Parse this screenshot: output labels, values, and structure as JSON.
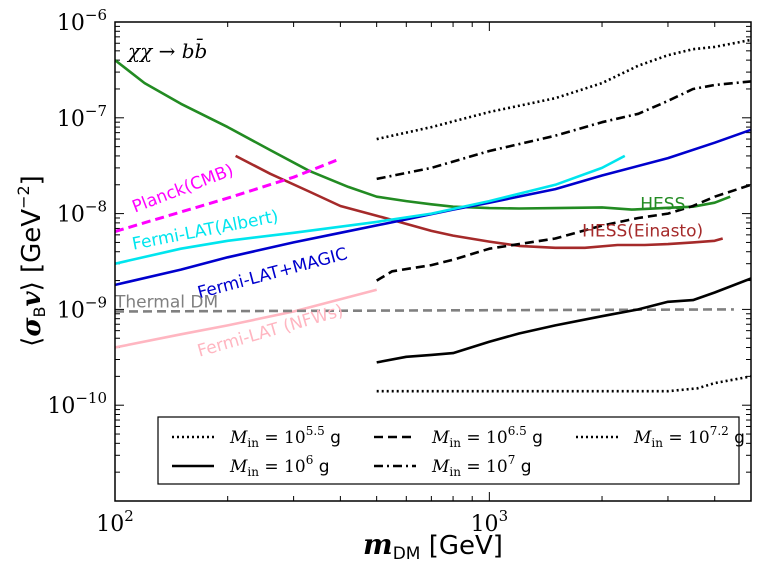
{
  "chart_data": {
    "type": "line",
    "xscale": "log",
    "yscale": "log",
    "xlim": [
      100,
      5000
    ],
    "ylim": [
      1e-11,
      1e-06
    ],
    "xlabel": "m_DM [GeV]",
    "ylabel": "⟨σ_B v⟩ [GeV^-2]",
    "process_label": "χχ → bb̄",
    "x_ticks": [
      {
        "value": 100,
        "base": "10",
        "exp": "2"
      },
      {
        "value": 1000,
        "base": "10",
        "exp": "3"
      }
    ],
    "y_ticks": [
      {
        "value": 1e-10,
        "base": "10",
        "exp": "−10"
      },
      {
        "value": 1e-09,
        "base": "10",
        "exp": "−9"
      },
      {
        "value": 1e-08,
        "base": "10",
        "exp": "−8"
      },
      {
        "value": 1e-07,
        "base": "10",
        "exp": "−7"
      },
      {
        "value": 1e-06,
        "base": "10",
        "exp": "−6"
      }
    ],
    "series": [
      {
        "name": "HESS",
        "color": "#228b22",
        "dash": "solid",
        "width": 2.6,
        "x": [
          100,
          120,
          150,
          200,
          260,
          330,
          420,
          500,
          600,
          700,
          800,
          1000,
          1200,
          1500,
          2000,
          2400,
          3000,
          3500,
          4000,
          4400
        ],
        "y": [
          4e-07,
          2.3e-07,
          1.4e-07,
          8e-08,
          4.6e-08,
          2.8e-08,
          1.9e-08,
          1.5e-08,
          1.35e-08,
          1.25e-08,
          1.18e-08,
          1.14e-08,
          1.13e-08,
          1.14e-08,
          1.16e-08,
          1.1e-08,
          1.15e-08,
          1.18e-08,
          1.3e-08,
          1.5e-08
        ]
      },
      {
        "name": "HESS(Einasto)",
        "color": "#a52a2a",
        "dash": "solid",
        "width": 2.6,
        "x": [
          210,
          260,
          330,
          400,
          500,
          600,
          700,
          800,
          1000,
          1200,
          1500,
          1800,
          2200,
          2600,
          3000,
          3500,
          4000,
          4200
        ],
        "y": [
          4e-08,
          2.6e-08,
          1.7e-08,
          1.2e-08,
          9.5e-09,
          7.8e-09,
          6.6e-09,
          5.9e-09,
          5.1e-09,
          4.6e-09,
          4.4e-09,
          4.4e-09,
          4.7e-09,
          4.7e-09,
          4.8e-09,
          5e-09,
          5.2e-09,
          5.5e-09
        ]
      },
      {
        "name": "Fermi-LAT+MAGIC",
        "color": "#0000cd",
        "dash": "solid",
        "width": 2.6,
        "x": [
          100,
          150,
          200,
          300,
          400,
          600,
          800,
          1000,
          1500,
          2000,
          3000,
          4000,
          5000
        ],
        "y": [
          1.8e-09,
          2.6e-09,
          3.5e-09,
          5e-09,
          6.3e-09,
          8.7e-09,
          1.1e-08,
          1.3e-08,
          1.8e-08,
          2.5e-08,
          3.8e-08,
          5.5e-08,
          7.5e-08
        ]
      },
      {
        "name": "Fermi-LAT(Albert)",
        "color": "#00e5ee",
        "dash": "solid",
        "width": 2.6,
        "x": [
          100,
          150,
          200,
          300,
          500,
          700,
          1000,
          1500,
          2000,
          2300
        ],
        "y": [
          3e-09,
          4.3e-09,
          5.2e-09,
          6.3e-09,
          8.2e-09,
          1e-08,
          1.35e-08,
          2e-08,
          3e-08,
          4e-08
        ]
      },
      {
        "name": "Planck(CMB)",
        "color": "#ff00ff",
        "dash": "dashed",
        "width": 3,
        "x": [
          100,
          200,
          300,
          390
        ],
        "y": [
          6.5e-09,
          1.45e-08,
          2.4e-08,
          3.6e-08
        ]
      },
      {
        "name": "Fermi-LAT (NFWs)",
        "color": "#ffb6c1",
        "dash": "solid",
        "width": 2.6,
        "x": [
          100,
          150,
          200,
          300,
          500
        ],
        "y": [
          4e-10,
          5.5e-10,
          6.8e-10,
          9.5e-10,
          1.6e-09
        ]
      },
      {
        "name": "Thermal DM",
        "color": "#808080",
        "dash": "dashed",
        "width": 2.6,
        "x": [
          100,
          4500
        ],
        "y": [
          9.5e-10,
          1e-09
        ]
      },
      {
        "name": "M_in = 10^6 g",
        "color": "#000000",
        "dash": "solid",
        "width": 2.6,
        "x": [
          500,
          600,
          700,
          800,
          1000,
          1200,
          1500,
          2000,
          2500,
          3000,
          3500,
          4000,
          5000
        ],
        "y": [
          2.8e-10,
          3.2e-10,
          3.35e-10,
          3.5e-10,
          4.6e-10,
          5.6e-10,
          6.8e-10,
          8.5e-10,
          1e-09,
          1.2e-09,
          1.25e-09,
          1.5e-09,
          2.1e-09
        ]
      },
      {
        "name": "M_in = 10^6.5 g",
        "color": "#000000",
        "dash": "dashed",
        "width": 2.6,
        "x": [
          500,
          550,
          700,
          800,
          1000,
          1500,
          2000,
          2500,
          3000,
          3500,
          4000,
          5000
        ],
        "y": [
          2e-09,
          2.5e-09,
          2.9e-09,
          3.3e-09,
          4.3e-09,
          5.5e-09,
          7.5e-09,
          9e-09,
          1e-08,
          1.2e-08,
          1.5e-08,
          2e-08
        ]
      },
      {
        "name": "M_in = 10^7 g",
        "color": "#000000",
        "dash": "dashdot",
        "width": 2.6,
        "x": [
          500,
          700,
          1000,
          1500,
          2000,
          2500,
          3000,
          3500,
          4000,
          5000
        ],
        "y": [
          2.3e-08,
          3e-08,
          4.5e-08,
          6.5e-08,
          9e-08,
          1.1e-07,
          1.5e-07,
          2e-07,
          2.2e-07,
          2.4e-07
        ]
      },
      {
        "name": "M_in = 10^5.5 g",
        "color": "#000000",
        "dash": "dotted",
        "width": 2.6,
        "x": [
          500,
          1000,
          2000,
          3000,
          3600,
          4000,
          5000
        ],
        "y": [
          1.4e-10,
          1.4e-10,
          1.4e-10,
          1.4e-10,
          1.5e-10,
          1.7e-10,
          2e-10
        ]
      },
      {
        "name": "M_in = 10^7.2 g",
        "color": "#000000",
        "dash": "dotted",
        "width": 2.6,
        "x": [
          500,
          700,
          1000,
          1500,
          2000,
          2500,
          3000,
          3500,
          4000,
          5000
        ],
        "y": [
          6e-08,
          8e-08,
          1.15e-07,
          1.6e-07,
          2.3e-07,
          3.5e-07,
          4.5e-07,
          5.2e-07,
          5.5e-07,
          6.5e-07
        ]
      }
    ],
    "curve_labels": [
      {
        "series": "Planck(CMB)",
        "text": "Planck(CMB)",
        "x": 113,
        "y": 1.02e-08,
        "rotate": -21,
        "color": "#ff00ff"
      },
      {
        "series": "Fermi-LAT(Albert)",
        "text": "Fermi-LAT(Albert)",
        "x": 112,
        "y": 4.2e-09,
        "rotate": -11,
        "color": "#00e5ee"
      },
      {
        "series": "Fermi-LAT+MAGIC",
        "text": "Fermi-LAT+MAGIC",
        "x": 168,
        "y": 1.3e-09,
        "rotate": -15,
        "color": "#0000cd"
      },
      {
        "series": "Thermal DM",
        "text": "Thermal DM",
        "x": 100,
        "y": 1.05e-09,
        "rotate": 0,
        "color": "#808080"
      },
      {
        "series": "Fermi-LAT (NFWs)",
        "text": "Fermi-LAT (NFWs)",
        "x": 168,
        "y": 3.2e-10,
        "rotate": -16,
        "color": "#ffb6c1"
      },
      {
        "series": "HESS",
        "text": "HESS",
        "x": 2530,
        "y": 1.1e-08,
        "rotate": 0,
        "color": "#228b22"
      },
      {
        "series": "HESS(Einasto)",
        "text": "HESS(Einasto)",
        "x": 1770,
        "y": 5.8e-09,
        "rotate": 0,
        "color": "#a52a2a"
      }
    ],
    "legend": {
      "placement": "bottom",
      "entries": [
        {
          "series": "M_in = 10^5.5 g",
          "prefix": "M",
          "sub": "in",
          "mid": " = 10",
          "exp": "5.5",
          "suffix": " g",
          "dash": "dotted"
        },
        {
          "series": "M_in = 10^6.5 g",
          "prefix": "M",
          "sub": "in",
          "mid": " = 10",
          "exp": "6.5",
          "suffix": " g",
          "dash": "dashed"
        },
        {
          "series": "M_in = 10^7.2 g",
          "prefix": "M",
          "sub": "in",
          "mid": " = 10",
          "exp": "7.2",
          "suffix": " g",
          "dash": "dotted"
        },
        {
          "series": "M_in = 10^6 g",
          "prefix": "M",
          "sub": "in",
          "mid": " = 10",
          "exp": "6",
          "suffix": " g",
          "dash": "solid"
        },
        {
          "series": "M_in = 10^7 g",
          "prefix": "M",
          "sub": "in",
          "mid": " = 10",
          "exp": "7",
          "suffix": " g",
          "dash": "dashdot"
        }
      ]
    }
  }
}
